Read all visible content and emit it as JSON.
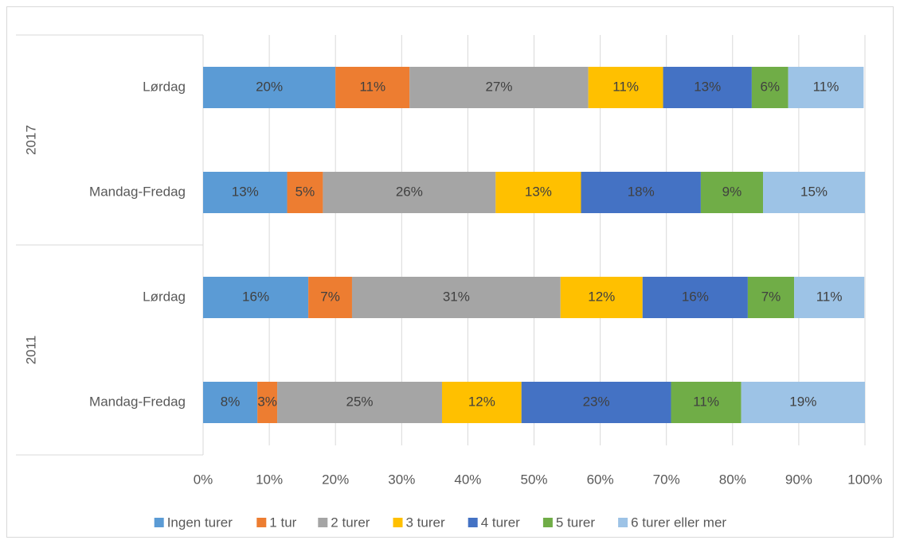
{
  "chart_data": {
    "type": "stacked_bar_horizontal",
    "categories": [
      "Lørdag",
      "Mandag-Fredag",
      "Lørdag",
      "Mandag-Fredag"
    ],
    "groups": [
      {
        "name": "2017",
        "size": 2
      },
      {
        "name": "2011",
        "size": 2
      }
    ],
    "series": [
      {
        "name": "Ingen turer",
        "color": "#5b9bd5",
        "values": [
          20.0,
          12.7,
          15.9,
          8.2
        ],
        "value_labels": [
          "20%",
          "13%",
          "16%",
          "8%"
        ]
      },
      {
        "name": "1 tur",
        "color": "#ed7d31",
        "values": [
          11.2,
          5.4,
          6.6,
          3.0
        ],
        "value_labels": [
          "11%",
          "5%",
          "7%",
          "3%"
        ]
      },
      {
        "name": "2 turer",
        "color": "#a5a5a5",
        "values": [
          27.0,
          26.1,
          31.5,
          24.9
        ],
        "value_labels": [
          "27%",
          "26%",
          "31%",
          "25%"
        ]
      },
      {
        "name": "3 turer",
        "color": "#ffc000",
        "values": [
          11.3,
          12.9,
          12.4,
          12.0
        ],
        "value_labels": [
          "11%",
          "13%",
          "12%",
          "12%"
        ]
      },
      {
        "name": "4 turer",
        "color": "#4472c4",
        "values": [
          13.4,
          18.1,
          15.9,
          22.6
        ],
        "value_labels": [
          "13%",
          "18%",
          "16%",
          "23%"
        ]
      },
      {
        "name": "5 turer",
        "color": "#70ad47",
        "values": [
          5.5,
          9.4,
          7.0,
          10.6
        ],
        "value_labels": [
          "6%",
          "9%",
          "7%",
          "11%"
        ]
      },
      {
        "name": "6 turer eller mer",
        "color": "#9dc3e6",
        "values": [
          11.4,
          15.4,
          10.6,
          18.7
        ],
        "value_labels": [
          "11%",
          "15%",
          "11%",
          "19%"
        ]
      }
    ],
    "xlim": [
      0,
      100
    ],
    "xticks": [
      {
        "value": 0,
        "label": "0%"
      },
      {
        "value": 10,
        "label": "10%"
      },
      {
        "value": 20,
        "label": "20%"
      },
      {
        "value": 30,
        "label": "30%"
      },
      {
        "value": 40,
        "label": "40%"
      },
      {
        "value": 50,
        "label": "50%"
      },
      {
        "value": 60,
        "label": "60%"
      },
      {
        "value": 70,
        "label": "70%"
      },
      {
        "value": 80,
        "label": "80%"
      },
      {
        "value": 90,
        "label": "90%"
      },
      {
        "value": 100,
        "label": "100%"
      }
    ],
    "grid": true,
    "legend": "bottom"
  }
}
